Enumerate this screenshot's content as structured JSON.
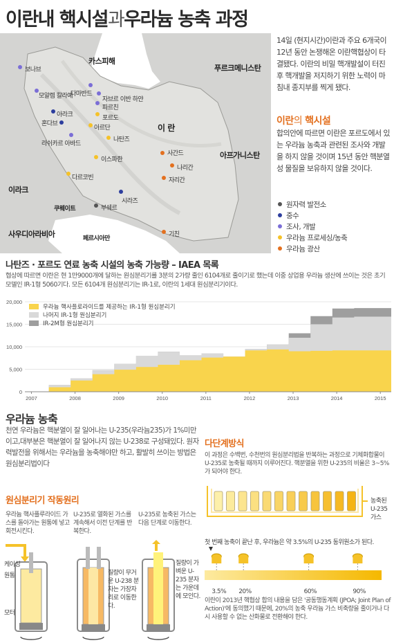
{
  "title": {
    "part1": "이란내 핵시설",
    "connector": "과",
    "part2": "우라늄 농축 과정"
  },
  "map": {
    "regions": [
      {
        "id": "caspian",
        "label": "카스피해"
      },
      {
        "id": "turkmenistan",
        "label": "푸르크메니스탄"
      },
      {
        "id": "iran",
        "label": "이 란"
      },
      {
        "id": "afghanistan",
        "label": "아프가니스탄"
      },
      {
        "id": "iraq",
        "label": "이라크"
      },
      {
        "id": "kuwait",
        "label": "쿠웨이트"
      },
      {
        "id": "saudi",
        "label": "사우디아라비아"
      },
      {
        "id": "gulf",
        "label": "페르시아만"
      }
    ],
    "sites": [
      {
        "id": "bonab",
        "label": "보나브",
        "type": "research"
      },
      {
        "id": "tabriz",
        "label": "모알렘 칼라예",
        "type": "research"
      },
      {
        "id": "damavand",
        "label": "다마반드",
        "type": "research"
      },
      {
        "id": "tehran1",
        "label": "자브르 이반 하얀",
        "type": "research"
      },
      {
        "id": "tehran2",
        "label": "파르친",
        "type": "research"
      },
      {
        "id": "fordow",
        "label": "포르도",
        "type": "processing"
      },
      {
        "id": "anzar",
        "label": "아라크",
        "type": "heavywater"
      },
      {
        "id": "qom",
        "label": "아르단",
        "type": "processing"
      },
      {
        "id": "hondab",
        "label": "혼다브",
        "type": "heavywater"
      },
      {
        "id": "lashkar",
        "label": "라쉬카르 아바드",
        "type": "research"
      },
      {
        "id": "natanz",
        "label": "나탄즈",
        "type": "processing"
      },
      {
        "id": "isfahan",
        "label": "이스파한",
        "type": "processing"
      },
      {
        "id": "saghand",
        "label": "사간드",
        "type": "mine"
      },
      {
        "id": "narigan",
        "label": "나리간",
        "type": "mine"
      },
      {
        "id": "zarigan",
        "label": "자리간",
        "type": "mine"
      },
      {
        "id": "darkhovin",
        "label": "다르코빈",
        "type": "power"
      },
      {
        "id": "shiraz",
        "label": "시라즈",
        "type": "research"
      },
      {
        "id": "bushehr",
        "label": "부쉐르",
        "type": "power"
      },
      {
        "id": "gchine",
        "label": "기친",
        "type": "mine"
      }
    ]
  },
  "intro": "14일 (현지시간)이란과 주요 6개국이12년 동안 논쟁해온 이란핵협상이 타결됐다. 이란의 비밀 핵개발설이 터진 후 핵개발을 저지하기 위한 노력이 마침내 종지부를 찍게 됐다.",
  "facilities": {
    "heading_part1": "이란",
    "heading_part2": "의 ",
    "heading_part3": "핵시설",
    "text": "합의안에 따르면 이란은 포르도에서 있는 우라늄 농축과 관련된 조사와 개발을 하지 않을 것이며 15년 동안 핵분열성 물질을 보유하지 않을 것이다."
  },
  "legend": [
    {
      "label": "원자력 발전소",
      "color": "#555555"
    },
    {
      "label": "중수",
      "color": "#2d3e9e"
    },
    {
      "label": "조사, 개발",
      "color": "#7b6ed6"
    },
    {
      "label": "우라늄 프로세싱/농축",
      "color": "#f5c229"
    },
    {
      "label": "우라늄 광산",
      "color": "#e3701f"
    }
  ],
  "chart_section": {
    "title": "나탄즈 · 포르도 연료 농축 시설의 농축 가능량 – IAEA 목록",
    "text": "협상에 따르면 이란은 현 1만9000개에 달하는 원심분리기를 3분의 2가량 줄인 6104개로 줄이기로 했는데 이중 상업용 우라늄 생산에 쓰이는 것은 초기 모델인 IR-1형 5060기다. 모든 6104개 원심분리기는 IR-1로, 이란의 1세대 원심분리기이다."
  },
  "chart_data": {
    "type": "area",
    "x_ticks": [
      "2007",
      "2008",
      "2009",
      "2010",
      "2011",
      "2012",
      "2013",
      "2014",
      "2015"
    ],
    "y_ticks": [
      "0",
      "5,000",
      "10,000",
      "15,000",
      "20,000"
    ],
    "ylim": [
      0,
      20000
    ],
    "x": [
      2006.85,
      2007.4,
      2007.9,
      2008.4,
      2008.9,
      2009.4,
      2009.9,
      2010.4,
      2010.9,
      2011.4,
      2011.9,
      2012.4,
      2012.9,
      2013.4,
      2013.9,
      2014.4,
      2014.9,
      2015.2
    ],
    "series": [
      {
        "name": "우라늄 핵사플로라이드를 제공하는 IR-1형 원심분리기",
        "color": "#f9d44c",
        "values": [
          0,
          1000,
          2500,
          3900,
          4900,
          5500,
          6000,
          7000,
          7600,
          7800,
          9200,
          9400,
          9000,
          9100,
          9200,
          9200,
          9200,
          9200
        ]
      },
      {
        "name": "나머지 IR-1형 원심분리기",
        "color": "#d9d9d9",
        "values": [
          0,
          1500,
          3000,
          4800,
          6200,
          8000,
          8900,
          8100,
          8500,
          7800,
          9500,
          10500,
          12000,
          15000,
          16500,
          16700,
          16700,
          16700
        ]
      },
      {
        "name": "IR-2M형 원심분리기",
        "color": "#9e9e9e",
        "values": [
          0,
          1500,
          3000,
          4800,
          6200,
          8000,
          8900,
          8100,
          8500,
          7800,
          9500,
          10500,
          13000,
          16800,
          18500,
          18600,
          18600,
          18600
        ]
      }
    ]
  },
  "enrichment": {
    "title": "우라늄 농축",
    "text": "천연 우라늄은 핵분열이 잘 일어나는 U-235(우라늄235)가 1%미만이고,대부분은 핵분열이 잘 일어나지 않는 U-238로 구성돼있다. 원자력발전을 위해서는 우라늄을 농축해야만 하고, 활발히 쓰이는 방법은 원심분리법이다"
  },
  "principle": {
    "title": "원심분리기 작동원리",
    "steps": [
      "우라늄 핵사플루라이드 가스를 돌아가는 원통에 넣고 회전시킨다.",
      "U-235로 열화된 가스를 계속해서 이전 단계를 반복한다.",
      "U-235로 농축된 가스는 다음 단계로 이동한다."
    ],
    "labels": {
      "casing": "케이싱",
      "rotor": "원통",
      "motor": "모터",
      "heavy": "질량이 무거운 U-238 분자는 가장자리로 이동한다.",
      "light": "질량이 가벼운 U-235 분자는 가운데에 모인다."
    }
  },
  "multistage": {
    "title": "다단계방식",
    "text": "이 과정은 수백번, 수천번의 원심분리법을 반복하는 과정으로 기체화합물이 U-235로 농축될 때까지 이루어진다. 핵분열을 위한 U-235의 비율은 3~5%가 되어야 한다.",
    "output_label": "농축된 U-235 가스",
    "first_step": "첫 번째 농축이 끝난 후, 우라늄은 약 3.5%의 U-235 동위원소가 된다.",
    "scale": [
      "3.5%",
      "20%",
      "60%",
      "90%"
    ],
    "scale_values": [
      3.5,
      20,
      60,
      90
    ],
    "note": "이란이 2013년 핵협상 합의 내용을 담은 '공동행동계획 (JPOA; Joint Plan of Action)'에 동의했기 때문에, 20%의 농축 우라늄 가스 비축량을 줄이거나 다시 사용할 수 없는 산화물로 전환해야 한다."
  }
}
